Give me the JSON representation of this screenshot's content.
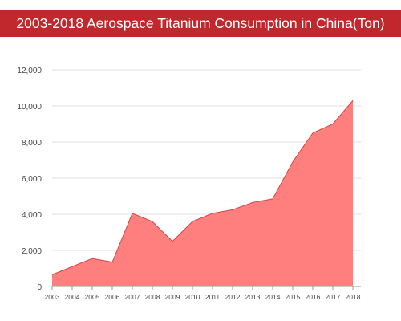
{
  "title": "2003-2018 Aerospace Titanium Consumption in China(Ton)",
  "colors": {
    "title_bar": "#c0282d",
    "title_text": "#ffffff",
    "area_fill": "#ff7f7f",
    "area_line": "#d64545",
    "grid": "#e0e0e0"
  },
  "chart_data": {
    "type": "area",
    "title": "2003-2018 Aerospace Titanium Consumption in China(Ton)",
    "xlabel": "",
    "ylabel": "",
    "categories": [
      "2003",
      "2004",
      "2005",
      "2006",
      "2007",
      "2008",
      "2009",
      "2010",
      "2011",
      "2012",
      "2013",
      "2014",
      "2015",
      "2016",
      "2017",
      "2018"
    ],
    "values": [
      650,
      1100,
      1550,
      1350,
      4050,
      3600,
      2500,
      3600,
      4050,
      4250,
      4650,
      4850,
      6900,
      8500,
      9000,
      10300
    ],
    "ylim": [
      0,
      12000
    ],
    "yticks": [
      0,
      2000,
      4000,
      6000,
      8000,
      10000,
      12000
    ],
    "ytick_labels": [
      "0",
      "2,000",
      "4,000",
      "6,000",
      "8,000",
      "10,000",
      "12,000"
    ],
    "grid": true,
    "legend": "none"
  }
}
